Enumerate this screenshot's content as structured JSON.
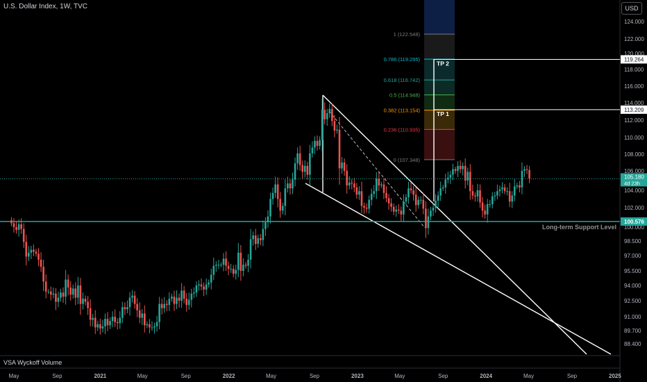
{
  "header": {
    "title": "U.S. Dollar Index, 1W, TVC",
    "currency_button": "USD"
  },
  "indicator": {
    "label": "VSA Wyckoff Volume"
  },
  "chart_data": {
    "type": "candlestick",
    "symbol": "U.S. Dollar Index",
    "interval": "1W",
    "source": "TVC",
    "y_axis": {
      "ticks": [
        "124.000",
        "122.000",
        "120.000",
        "118.000",
        "116.000",
        "114.000",
        "112.000",
        "110.000",
        "108.000",
        "106.000",
        "104.000",
        "102.000",
        "100.000",
        "98.500",
        "97.000",
        "95.500",
        "94.000",
        "92.500",
        "91.000",
        "89.700",
        "88.400"
      ],
      "tick_values": [
        124.0,
        122.0,
        120.0,
        118.0,
        116.0,
        114.0,
        112.0,
        110.0,
        108.0,
        106.0,
        104.0,
        102.0,
        100.0,
        98.5,
        97.0,
        95.5,
        94.0,
        92.5,
        91.0,
        89.7,
        88.4
      ]
    },
    "x_axis": {
      "ticks": [
        "May",
        "Sep",
        "2021",
        "May",
        "Sep",
        "2022",
        "May",
        "Sep",
        "2023",
        "May",
        "Sep",
        "2024",
        "May",
        "Sep",
        "2025"
      ],
      "tick_dates": [
        "2020-05-01",
        "2020-09-01",
        "2021-01-01",
        "2021-05-01",
        "2021-09-01",
        "2022-01-01",
        "2022-05-01",
        "2022-09-01",
        "2023-01-01",
        "2023-05-01",
        "2023-09-01",
        "2024-01-01",
        "2024-05-01",
        "2024-09-01",
        "2025-01-01"
      ],
      "bold_ticks": [
        "2021",
        "2022",
        "2023",
        "2024",
        "2025"
      ]
    },
    "last_price": {
      "value": 105.18,
      "label": "105.180",
      "countdown": "4d 23h",
      "color": "#26a69a"
    },
    "support_level": {
      "value": 100.576,
      "label": "100.576",
      "text": "Long-term Support Level",
      "color": "#26a69a"
    },
    "fibonacci": [
      {
        "ratio": "1",
        "price": 122.548,
        "label": "1 (122.548)",
        "color": "#787b86"
      },
      {
        "ratio": "0.786",
        "price": 119.295,
        "label": "0.786 (119.295)",
        "color": "#00bcd4"
      },
      {
        "ratio": "0.618",
        "price": 116.742,
        "label": "0.618 (116.742)",
        "color": "#26a69a"
      },
      {
        "ratio": "0.5",
        "price": 114.948,
        "label": "0.5 (114.948)",
        "color": "#4caf50"
      },
      {
        "ratio": "0.382",
        "price": 113.154,
        "label": "0.382 (113.154)",
        "color": "#ff9800"
      },
      {
        "ratio": "0.236",
        "price": 110.935,
        "label": "0.236 (110.935)",
        "color": "#f23645"
      },
      {
        "ratio": "0",
        "price": 107.348,
        "label": "0 (107.348)",
        "color": "#787b86"
      }
    ],
    "targets": [
      {
        "name": "TP 1",
        "price": 113.209,
        "label": "113.209"
      },
      {
        "name": "TP 2",
        "price": 119.264,
        "label": "119.264"
      }
    ],
    "closes": [
      {
        "d": "2020-04-24",
        "c": 100.4
      },
      {
        "d": "2020-05-01",
        "c": 100.0
      },
      {
        "d": "2020-05-08",
        "c": 99.7
      },
      {
        "d": "2020-05-15",
        "c": 100.3
      },
      {
        "d": "2020-05-22",
        "c": 99.8
      },
      {
        "d": "2020-05-29",
        "c": 98.4
      },
      {
        "d": "2020-06-05",
        "c": 96.9
      },
      {
        "d": "2020-06-12",
        "c": 97.3
      },
      {
        "d": "2020-06-19",
        "c": 97.6
      },
      {
        "d": "2020-06-26",
        "c": 97.4
      },
      {
        "d": "2020-07-03",
        "c": 97.2
      },
      {
        "d": "2020-07-10",
        "c": 96.6
      },
      {
        "d": "2020-07-17",
        "c": 95.9
      },
      {
        "d": "2020-07-24",
        "c": 94.4
      },
      {
        "d": "2020-07-31",
        "c": 93.4
      },
      {
        "d": "2020-08-07",
        "c": 93.4
      },
      {
        "d": "2020-08-14",
        "c": 93.1
      },
      {
        "d": "2020-08-21",
        "c": 93.2
      },
      {
        "d": "2020-08-28",
        "c": 92.4
      },
      {
        "d": "2020-09-04",
        "c": 92.8
      },
      {
        "d": "2020-09-11",
        "c": 93.3
      },
      {
        "d": "2020-09-18",
        "c": 92.9
      },
      {
        "d": "2020-09-25",
        "c": 94.6
      },
      {
        "d": "2020-10-02",
        "c": 93.8
      },
      {
        "d": "2020-10-09",
        "c": 93.1
      },
      {
        "d": "2020-10-16",
        "c": 93.7
      },
      {
        "d": "2020-10-23",
        "c": 92.8
      },
      {
        "d": "2020-10-30",
        "c": 94.0
      },
      {
        "d": "2020-11-06",
        "c": 92.2
      },
      {
        "d": "2020-11-13",
        "c": 92.7
      },
      {
        "d": "2020-11-20",
        "c": 92.4
      },
      {
        "d": "2020-11-27",
        "c": 91.8
      },
      {
        "d": "2020-12-04",
        "c": 90.7
      },
      {
        "d": "2020-12-11",
        "c": 90.9
      },
      {
        "d": "2020-12-18",
        "c": 90.0
      },
      {
        "d": "2020-12-25",
        "c": 90.3
      },
      {
        "d": "2021-01-01",
        "c": 89.9
      },
      {
        "d": "2021-01-08",
        "c": 90.1
      },
      {
        "d": "2021-01-15",
        "c": 90.8
      },
      {
        "d": "2021-01-22",
        "c": 90.2
      },
      {
        "d": "2021-01-29",
        "c": 90.6
      },
      {
        "d": "2021-02-05",
        "c": 91.0
      },
      {
        "d": "2021-02-12",
        "c": 90.5
      },
      {
        "d": "2021-02-19",
        "c": 90.4
      },
      {
        "d": "2021-02-26",
        "c": 90.9
      },
      {
        "d": "2021-03-05",
        "c": 91.9
      },
      {
        "d": "2021-03-12",
        "c": 91.7
      },
      {
        "d": "2021-03-19",
        "c": 91.9
      },
      {
        "d": "2021-03-26",
        "c": 92.8
      },
      {
        "d": "2021-04-02",
        "c": 93.0
      },
      {
        "d": "2021-04-09",
        "c": 92.2
      },
      {
        "d": "2021-04-16",
        "c": 91.6
      },
      {
        "d": "2021-04-23",
        "c": 90.9
      },
      {
        "d": "2021-04-30",
        "c": 91.3
      },
      {
        "d": "2021-05-07",
        "c": 90.2
      },
      {
        "d": "2021-05-14",
        "c": 90.3
      },
      {
        "d": "2021-05-21",
        "c": 90.0
      },
      {
        "d": "2021-05-28",
        "c": 90.0
      },
      {
        "d": "2021-06-04",
        "c": 90.1
      },
      {
        "d": "2021-06-11",
        "c": 90.5
      },
      {
        "d": "2021-06-18",
        "c": 92.2
      },
      {
        "d": "2021-06-25",
        "c": 91.8
      },
      {
        "d": "2021-07-02",
        "c": 92.2
      },
      {
        "d": "2021-07-09",
        "c": 92.1
      },
      {
        "d": "2021-07-16",
        "c": 92.7
      },
      {
        "d": "2021-07-23",
        "c": 92.9
      },
      {
        "d": "2021-07-30",
        "c": 92.2
      },
      {
        "d": "2021-08-06",
        "c": 92.8
      },
      {
        "d": "2021-08-13",
        "c": 92.5
      },
      {
        "d": "2021-08-20",
        "c": 93.5
      },
      {
        "d": "2021-08-27",
        "c": 92.7
      },
      {
        "d": "2021-09-03",
        "c": 92.1
      },
      {
        "d": "2021-09-10",
        "c": 92.6
      },
      {
        "d": "2021-09-17",
        "c": 93.2
      },
      {
        "d": "2021-09-24",
        "c": 93.3
      },
      {
        "d": "2021-10-01",
        "c": 94.0
      },
      {
        "d": "2021-10-08",
        "c": 94.1
      },
      {
        "d": "2021-10-15",
        "c": 93.9
      },
      {
        "d": "2021-10-22",
        "c": 93.6
      },
      {
        "d": "2021-10-29",
        "c": 94.1
      },
      {
        "d": "2021-11-05",
        "c": 94.3
      },
      {
        "d": "2021-11-12",
        "c": 95.1
      },
      {
        "d": "2021-11-19",
        "c": 96.0
      },
      {
        "d": "2021-11-26",
        "c": 96.1
      },
      {
        "d": "2021-12-03",
        "c": 96.1
      },
      {
        "d": "2021-12-10",
        "c": 96.1
      },
      {
        "d": "2021-12-17",
        "c": 96.7
      },
      {
        "d": "2021-12-24",
        "c": 96.0
      },
      {
        "d": "2021-12-31",
        "c": 95.7
      },
      {
        "d": "2022-01-07",
        "c": 95.7
      },
      {
        "d": "2022-01-14",
        "c": 95.2
      },
      {
        "d": "2022-01-21",
        "c": 95.6
      },
      {
        "d": "2022-01-28",
        "c": 97.3
      },
      {
        "d": "2022-02-04",
        "c": 95.5
      },
      {
        "d": "2022-02-11",
        "c": 96.1
      },
      {
        "d": "2022-02-18",
        "c": 96.0
      },
      {
        "d": "2022-02-25",
        "c": 96.6
      },
      {
        "d": "2022-03-04",
        "c": 98.7
      },
      {
        "d": "2022-03-11",
        "c": 99.1
      },
      {
        "d": "2022-03-18",
        "c": 98.2
      },
      {
        "d": "2022-03-25",
        "c": 98.8
      },
      {
        "d": "2022-04-01",
        "c": 98.6
      },
      {
        "d": "2022-04-08",
        "c": 99.8
      },
      {
        "d": "2022-04-15",
        "c": 100.5
      },
      {
        "d": "2022-04-22",
        "c": 101.1
      },
      {
        "d": "2022-04-29",
        "c": 103.0
      },
      {
        "d": "2022-05-06",
        "c": 103.7
      },
      {
        "d": "2022-05-13",
        "c": 104.6
      },
      {
        "d": "2022-05-20",
        "c": 103.0
      },
      {
        "d": "2022-05-27",
        "c": 101.7
      },
      {
        "d": "2022-06-03",
        "c": 102.2
      },
      {
        "d": "2022-06-10",
        "c": 104.2
      },
      {
        "d": "2022-06-17",
        "c": 104.7
      },
      {
        "d": "2022-06-24",
        "c": 104.2
      },
      {
        "d": "2022-07-01",
        "c": 105.1
      },
      {
        "d": "2022-07-08",
        "c": 106.9
      },
      {
        "d": "2022-07-15",
        "c": 108.1
      },
      {
        "d": "2022-07-22",
        "c": 106.7
      },
      {
        "d": "2022-07-29",
        "c": 105.9
      },
      {
        "d": "2022-08-05",
        "c": 106.6
      },
      {
        "d": "2022-08-12",
        "c": 105.6
      },
      {
        "d": "2022-08-19",
        "c": 108.1
      },
      {
        "d": "2022-08-26",
        "c": 108.8
      },
      {
        "d": "2022-09-02",
        "c": 109.6
      },
      {
        "d": "2022-09-09",
        "c": 109.0
      },
      {
        "d": "2022-09-16",
        "c": 109.7
      },
      {
        "d": "2022-09-23",
        "c": 113.2
      },
      {
        "d": "2022-09-30",
        "c": 112.1
      },
      {
        "d": "2022-10-07",
        "c": 112.8
      },
      {
        "d": "2022-10-14",
        "c": 113.3
      },
      {
        "d": "2022-10-21",
        "c": 111.9
      },
      {
        "d": "2022-10-28",
        "c": 110.8
      },
      {
        "d": "2022-11-04",
        "c": 110.9
      },
      {
        "d": "2022-11-11",
        "c": 106.3
      },
      {
        "d": "2022-11-18",
        "c": 107.0
      },
      {
        "d": "2022-11-25",
        "c": 106.0
      },
      {
        "d": "2022-12-02",
        "c": 104.5
      },
      {
        "d": "2022-12-09",
        "c": 104.8
      },
      {
        "d": "2022-12-16",
        "c": 104.7
      },
      {
        "d": "2022-12-23",
        "c": 104.3
      },
      {
        "d": "2022-12-30",
        "c": 103.5
      },
      {
        "d": "2023-01-06",
        "c": 103.9
      },
      {
        "d": "2023-01-13",
        "c": 102.2
      },
      {
        "d": "2023-01-20",
        "c": 102.0
      },
      {
        "d": "2023-01-27",
        "c": 101.9
      },
      {
        "d": "2023-02-03",
        "c": 102.9
      },
      {
        "d": "2023-02-10",
        "c": 103.6
      },
      {
        "d": "2023-02-17",
        "c": 103.9
      },
      {
        "d": "2023-02-24",
        "c": 105.2
      },
      {
        "d": "2023-03-03",
        "c": 104.5
      },
      {
        "d": "2023-03-10",
        "c": 104.6
      },
      {
        "d": "2023-03-17",
        "c": 103.7
      },
      {
        "d": "2023-03-24",
        "c": 103.1
      },
      {
        "d": "2023-03-31",
        "c": 102.5
      },
      {
        "d": "2023-04-07",
        "c": 102.1
      },
      {
        "d": "2023-04-14",
        "c": 101.6
      },
      {
        "d": "2023-04-21",
        "c": 101.8
      },
      {
        "d": "2023-04-28",
        "c": 101.7
      },
      {
        "d": "2023-05-05",
        "c": 101.3
      },
      {
        "d": "2023-05-12",
        "c": 102.7
      },
      {
        "d": "2023-05-19",
        "c": 103.2
      },
      {
        "d": "2023-05-26",
        "c": 104.2
      },
      {
        "d": "2023-06-02",
        "c": 104.0
      },
      {
        "d": "2023-06-09",
        "c": 103.5
      },
      {
        "d": "2023-06-16",
        "c": 102.3
      },
      {
        "d": "2023-06-23",
        "c": 102.9
      },
      {
        "d": "2023-06-30",
        "c": 102.9
      },
      {
        "d": "2023-07-07",
        "c": 101.9
      },
      {
        "d": "2023-07-14",
        "c": 99.9
      },
      {
        "d": "2023-07-21",
        "c": 101.1
      },
      {
        "d": "2023-07-28",
        "c": 101.7
      },
      {
        "d": "2023-08-04",
        "c": 102.0
      },
      {
        "d": "2023-08-11",
        "c": 102.8
      },
      {
        "d": "2023-08-18",
        "c": 103.4
      },
      {
        "d": "2023-08-25",
        "c": 104.2
      },
      {
        "d": "2023-09-01",
        "c": 104.3
      },
      {
        "d": "2023-09-08",
        "c": 105.1
      },
      {
        "d": "2023-09-15",
        "c": 105.3
      },
      {
        "d": "2023-09-22",
        "c": 105.6
      },
      {
        "d": "2023-09-29",
        "c": 106.2
      },
      {
        "d": "2023-10-06",
        "c": 106.0
      },
      {
        "d": "2023-10-13",
        "c": 106.6
      },
      {
        "d": "2023-10-20",
        "c": 106.2
      },
      {
        "d": "2023-10-27",
        "c": 106.6
      },
      {
        "d": "2023-11-03",
        "c": 105.0
      },
      {
        "d": "2023-11-10",
        "c": 105.9
      },
      {
        "d": "2023-11-17",
        "c": 103.9
      },
      {
        "d": "2023-11-24",
        "c": 103.4
      },
      {
        "d": "2023-12-01",
        "c": 103.3
      },
      {
        "d": "2023-12-08",
        "c": 104.0
      },
      {
        "d": "2023-12-15",
        "c": 102.6
      },
      {
        "d": "2023-12-22",
        "c": 101.7
      },
      {
        "d": "2023-12-29",
        "c": 101.3
      },
      {
        "d": "2024-01-05",
        "c": 102.4
      },
      {
        "d": "2024-01-12",
        "c": 102.4
      },
      {
        "d": "2024-01-19",
        "c": 103.3
      },
      {
        "d": "2024-01-26",
        "c": 103.4
      },
      {
        "d": "2024-02-02",
        "c": 103.9
      },
      {
        "d": "2024-02-09",
        "c": 104.1
      },
      {
        "d": "2024-02-16",
        "c": 104.3
      },
      {
        "d": "2024-02-23",
        "c": 103.9
      },
      {
        "d": "2024-03-01",
        "c": 103.9
      },
      {
        "d": "2024-03-08",
        "c": 102.7
      },
      {
        "d": "2024-03-15",
        "c": 103.4
      },
      {
        "d": "2024-03-22",
        "c": 104.4
      },
      {
        "d": "2024-03-29",
        "c": 104.5
      },
      {
        "d": "2024-04-05",
        "c": 104.3
      },
      {
        "d": "2024-04-12",
        "c": 106.0
      },
      {
        "d": "2024-04-19",
        "c": 106.2
      },
      {
        "d": "2024-04-26",
        "c": 106.1
      },
      {
        "d": "2024-05-03",
        "c": 105.2
      }
    ]
  },
  "style": {
    "up_color": "#26a69a",
    "down_color": "#ef5350",
    "fib_zone_colors": [
      "#0e1f45",
      "#1a1a1a",
      "#0b2a2c",
      "#0c2b26",
      "#102b12",
      "#3b2a07",
      "#3a0f10"
    ]
  }
}
